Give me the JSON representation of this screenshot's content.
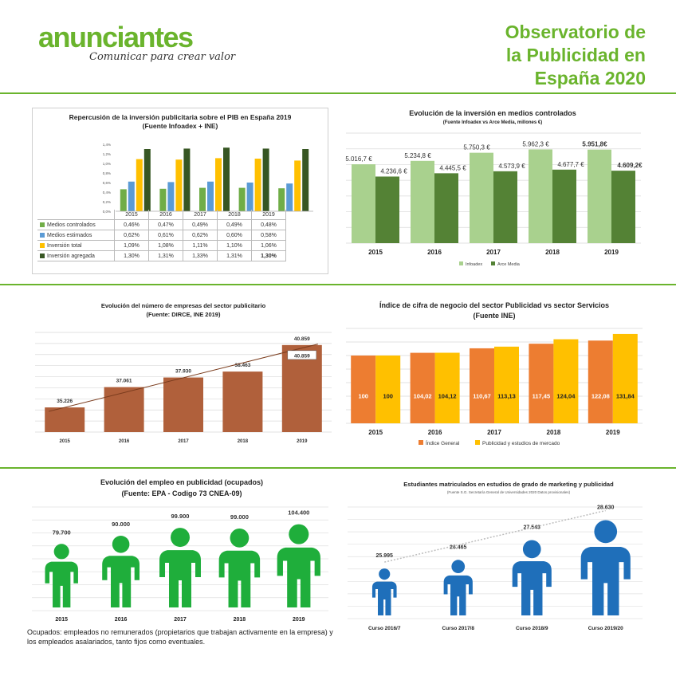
{
  "header": {
    "logo": "anunciantes",
    "tagline": "Comunicar para crear valor",
    "title_lines": [
      "Observatorio de",
      "la Publicidad en",
      "España 2020"
    ]
  },
  "colors": {
    "accent": "#6ab42d",
    "light_green": "#a9d18e",
    "dark_green": "#548235",
    "brown": "#b0603b",
    "orange": "#ed7d31",
    "yellow": "#ffc000",
    "blue": "#2e75b6",
    "pib_controlados": "#70ad47",
    "pib_estimados": "#5b9bd5",
    "pib_total": "#ffc000",
    "pib_agregada": "#375623",
    "people_green": "#1fae3b",
    "people_blue": "#1f6fba"
  },
  "footer_note": "Ocupados: empleados no remunerados (propietarios que trabajan activamente en la empresa) y los empleados asalariados, tanto fijos como eventuales.",
  "chart_data": [
    {
      "type": "bar",
      "title": "Repercusión de la inversión publicitaria sobre el PIB en España 2019",
      "subtitle": "(Fuente Infoadex + INE)",
      "categories": [
        "2015",
        "2016",
        "2017",
        "2018",
        "2019"
      ],
      "y_ticks": [
        "0,0%",
        "0,2%",
        "0,4%",
        "0,6%",
        "0,8%",
        "1,0%",
        "1,2%",
        "1,4%"
      ],
      "ylim": [
        0,
        1.4
      ],
      "series": [
        {
          "name": "Medios controlados",
          "values": [
            0.46,
            0.47,
            0.49,
            0.49,
            0.48
          ],
          "labels": [
            "0,46%",
            "0,47%",
            "0,49%",
            "0,49%",
            "0,48%"
          ]
        },
        {
          "name": "Medios estimados",
          "values": [
            0.62,
            0.61,
            0.62,
            0.6,
            0.58
          ],
          "labels": [
            "0,62%",
            "0,61%",
            "0,62%",
            "0,60%",
            "0,58%"
          ]
        },
        {
          "name": "Inversión total",
          "values": [
            1.09,
            1.08,
            1.11,
            1.1,
            1.06
          ],
          "labels": [
            "1,09%",
            "1,08%",
            "1,11%",
            "1,10%",
            "1,06%"
          ]
        },
        {
          "name": "Inversión agregada",
          "values": [
            1.3,
            1.31,
            1.33,
            1.31,
            1.3
          ],
          "labels": [
            "1,30%",
            "1,31%",
            "1,33%",
            "1,31%",
            "1,30%"
          ]
        }
      ]
    },
    {
      "type": "bar",
      "title": "Evolución de la inversión en medios controlados",
      "subtitle": "(Fuente Infoadex vs Arce Media, millones €)",
      "categories": [
        "2015",
        "2016",
        "2017",
        "2018",
        "2019"
      ],
      "ylim": [
        0,
        7000
      ],
      "series": [
        {
          "name": "Infoadex",
          "values": [
            5016.7,
            5234.8,
            5750.3,
            5962.3,
            5951.8
          ],
          "labels": [
            "5.016,7 €",
            "5.234,8 €",
            "5.750,3 €",
            "5.962,3 €",
            "5.951,8€"
          ]
        },
        {
          "name": "Arce Media",
          "values": [
            4236.6,
            4445.5,
            4573.9,
            4677.7,
            4609.2
          ],
          "labels": [
            "4.236,6 €",
            "4.445,5 €",
            "4.573,9 €",
            "4.677,7 €",
            "4.609,2€"
          ]
        }
      ]
    },
    {
      "type": "bar",
      "title": "Evolución del número de empresas del sector publicitario",
      "subtitle": "(Fuente: DIRCE, INE 2019)",
      "categories": [
        "2015",
        "2016",
        "2017",
        "2018",
        "2019"
      ],
      "values": [
        35226,
        37061,
        37930,
        38463,
        40859
      ],
      "labels": [
        "35.226",
        "37.061",
        "37.930",
        "38.463",
        "40.859"
      ],
      "callout": "40.859",
      "ylim": [
        33000,
        42000
      ],
      "trendline": true
    },
    {
      "type": "bar",
      "title": "Índice de cifra de negocio del sector Publicidad  vs sector Servicios",
      "subtitle": "(Fuente INE)",
      "categories": [
        "2015",
        "2016",
        "2017",
        "2018",
        "2019"
      ],
      "ylim": [
        0,
        140
      ],
      "series": [
        {
          "name": "Índice General",
          "values": [
            100,
            104.02,
            110.67,
            117.45,
            122.08
          ],
          "labels": [
            "100",
            "104,02",
            "110,67",
            "117,45",
            "122,08"
          ]
        },
        {
          "name": "Publicidad y estudios de mercado",
          "values": [
            100,
            104.12,
            113.13,
            124.04,
            131.84
          ],
          "labels": [
            "100",
            "104,12",
            "113,13",
            "124,04",
            "131,84"
          ]
        }
      ]
    },
    {
      "type": "bar",
      "title": "Evolución del empleo en publicidad (ocupados)",
      "subtitle": "(Fuente: EPA - Codigo 73 CNEA-09)",
      "categories": [
        "2015",
        "2016",
        "2017",
        "2018",
        "2019"
      ],
      "values": [
        79700,
        90000,
        99900,
        99000,
        104400
      ],
      "labels": [
        "79.700",
        "90.000",
        "99.900",
        "99.000",
        "104.400"
      ],
      "ylim": [
        0,
        110000
      ]
    },
    {
      "type": "bar",
      "title": "Estudiantes matriculados en estudios de grado de marketing y publicidad",
      "subtitle": "(Fuente S.G. Secretaría General de Universidades 2020 Datos provisionales)",
      "categories": [
        "Curso 2016/7",
        "Curso 2017/8",
        "Curso 2018/9",
        "Curso 2019/20"
      ],
      "values": [
        25995,
        26465,
        27543,
        28630
      ],
      "labels": [
        "25.995",
        "26.465",
        "27.543",
        "28.630"
      ],
      "ylim": [
        25000,
        29000
      ],
      "trendline": true
    }
  ]
}
